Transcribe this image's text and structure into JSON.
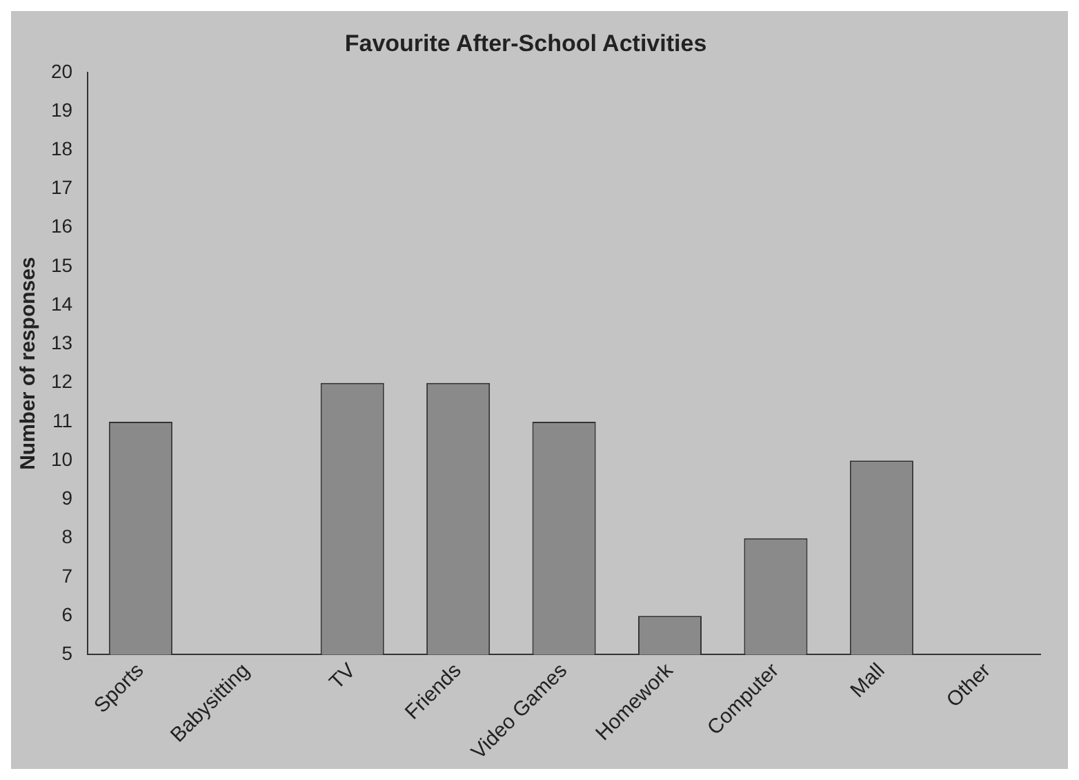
{
  "chart_data": {
    "type": "bar",
    "title": "Favourite After-School Activities",
    "ylabel": "Number of responses",
    "categories": [
      "Sports",
      "Babysitting",
      "TV",
      "Friends",
      "Video Games",
      "Homework",
      "Computer",
      "Mall",
      "Other"
    ],
    "values": [
      11,
      null,
      12,
      12,
      11,
      6,
      8,
      10,
      null
    ],
    "color": "#8a8a8a",
    "ylim": [
      5,
      20
    ],
    "yticks": [
      5,
      6,
      7,
      8,
      9,
      10,
      11,
      12,
      13,
      14,
      15,
      16,
      17,
      18,
      19,
      20
    ],
    "grid": false,
    "legend": false
  }
}
